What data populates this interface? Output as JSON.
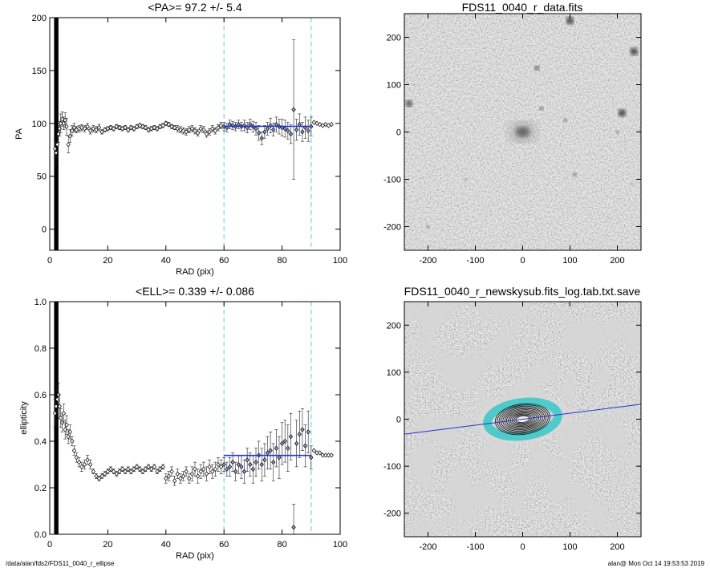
{
  "footer": {
    "left": "/data/alan/fds2/FDS11_0040_r_ellipse",
    "right": "alan@  Mon Oct 14 19:53:53 2019"
  },
  "colors": {
    "fit_line": "#2233cc",
    "bound_line": "#66dddd",
    "ellipse": "#40c8c8"
  },
  "chart_data": [
    {
      "type": "scatter",
      "title": "<PA>=  97.2 +/-   5.4",
      "xlabel": "RAD (pix)",
      "ylabel": "PA",
      "xlim": [
        0,
        100
      ],
      "ylim": [
        -20,
        200
      ],
      "xticks": [
        0,
        20,
        40,
        60,
        80,
        100
      ],
      "yticks": [
        0,
        50,
        100,
        150,
        200
      ],
      "bounds": [
        60,
        90
      ],
      "fit": {
        "x": [
          60,
          90
        ],
        "y": 97.2
      },
      "inner_band": {
        "x": [
          1.5,
          3.0
        ],
        "y": [
          -20,
          200
        ]
      },
      "series": [
        {
          "x": [
            1.8,
            2.2,
            2.6,
            3.0,
            3.4,
            3.8,
            4.3,
            4.8,
            5.3,
            5.8,
            6.4,
            7.0,
            7.7,
            8.4,
            9.2,
            10.1,
            11.0,
            12.0,
            13.0,
            14.0,
            15.0,
            16.0,
            17.0,
            18.0,
            19.0,
            20.0,
            21.0,
            22.0,
            23.0,
            24.0,
            25.0,
            26.0,
            27.0,
            28.0,
            29.0,
            30.0,
            31.0,
            32.0,
            33.0,
            34.0,
            35.0,
            36.0,
            37.0,
            38.0,
            39.0,
            40.0,
            41.0,
            42.0,
            43.0,
            44.0,
            45.0,
            46.0,
            47.0,
            48.0,
            49.0,
            50.0,
            51.0,
            52.0,
            53.0,
            54.0,
            55.0,
            56.0,
            57.0,
            58.0,
            59.0
          ],
          "y": [
            76,
            72,
            80,
            90,
            95,
            100,
            104,
            100,
            103,
            97,
            80,
            88,
            93,
            96,
            94,
            95,
            96,
            95,
            97,
            93,
            95,
            94,
            96,
            92,
            94,
            95,
            96,
            95,
            97,
            96,
            95,
            96,
            94,
            96,
            95,
            97,
            98,
            97,
            96,
            94,
            95,
            96,
            95,
            97,
            98,
            100,
            99,
            97,
            96,
            95,
            94,
            93,
            92,
            94,
            95,
            93,
            91,
            95,
            94,
            90,
            92,
            95,
            93,
            96,
            98
          ],
          "err": [
            8,
            10,
            9,
            8,
            7,
            9,
            7,
            6,
            7,
            8,
            8,
            6,
            5,
            4,
            3,
            3,
            3,
            3,
            3,
            3,
            3,
            3,
            3,
            2,
            2,
            2,
            2,
            2,
            2,
            2,
            2,
            2,
            2,
            2,
            2,
            2,
            2,
            2,
            2,
            2,
            2,
            2,
            2,
            2,
            2,
            2,
            2,
            2,
            2,
            3,
            3,
            3,
            3,
            3,
            3,
            3,
            3,
            3,
            3,
            3,
            3,
            3,
            3,
            3,
            3
          ]
        },
        {
          "x": [
            60,
            61,
            62,
            63,
            64,
            65,
            66,
            67,
            68,
            69,
            70,
            71,
            72,
            73,
            74,
            75,
            76,
            77,
            78,
            79,
            80,
            81,
            82,
            83,
            84,
            85,
            86,
            87,
            88,
            89,
            90
          ],
          "y": [
            97,
            96,
            99,
            98,
            97,
            99,
            97,
            98,
            96,
            99,
            97,
            95,
            91,
            86,
            92,
            95,
            98,
            94,
            99,
            97,
            96,
            95,
            93,
            90,
            113,
            94,
            99,
            92,
            96,
            93,
            97
          ],
          "err": [
            4,
            4,
            4,
            4,
            4,
            4,
            4,
            5,
            5,
            5,
            5,
            6,
            7,
            6,
            6,
            6,
            7,
            6,
            7,
            7,
            8,
            8,
            8,
            9,
            66,
            10,
            10,
            9,
            10,
            10,
            9
          ]
        },
        {
          "x": [
            91,
            92,
            93,
            94,
            95,
            96,
            97
          ],
          "y": [
            101,
            100,
            99,
            98,
            99,
            98,
            99
          ],
          "err": [
            0,
            0,
            0,
            0,
            0,
            0,
            0
          ]
        }
      ]
    },
    {
      "type": "scatter",
      "title": "<ELL>= 0.339 +/-  0.086",
      "xlabel": "RAD (pix)",
      "ylabel": "ellipticity",
      "xlim": [
        0,
        100
      ],
      "ylim": [
        0,
        1
      ],
      "xticks": [
        0,
        20,
        40,
        60,
        80,
        100
      ],
      "yticks": [
        0.0,
        0.2,
        0.4,
        0.6,
        0.8,
        1.0
      ],
      "bounds": [
        60,
        90
      ],
      "fit": {
        "x": [
          60,
          90
        ],
        "y": 0.339
      },
      "inner_band": {
        "x": [
          1.5,
          3.0
        ],
        "y": [
          0,
          1
        ]
      },
      "series": [
        {
          "x": [
            1.8,
            2.2,
            2.6,
            3.0,
            3.4,
            3.8,
            4.3,
            4.8,
            5.3,
            5.8,
            6.4,
            7.0,
            7.7,
            8.4,
            9.2,
            10.1,
            11.0,
            12.0,
            13.0,
            14.0,
            15.0,
            16.0,
            17.0,
            18.0,
            19.0,
            20.0,
            21.0,
            22.0,
            23.0,
            24.0,
            25.0,
            26.0,
            27.0,
            28.0,
            29.0,
            30.0,
            31.0,
            32.0,
            33.0,
            34.0,
            35.0,
            36.0,
            37.0,
            38.0,
            39.0,
            40.0,
            41.0,
            42.0,
            43.0,
            44.0,
            45.0,
            46.0,
            47.0,
            48.0,
            49.0,
            50.0,
            51.0,
            52.0,
            53.0,
            54.0,
            55.0,
            56.0,
            57.0,
            58.0,
            59.0
          ],
          "y": [
            0.52,
            0.55,
            0.58,
            0.6,
            0.55,
            0.5,
            0.48,
            0.52,
            0.45,
            0.47,
            0.42,
            0.44,
            0.4,
            0.36,
            0.33,
            0.31,
            0.29,
            0.3,
            0.32,
            0.3,
            0.27,
            0.25,
            0.24,
            0.25,
            0.26,
            0.27,
            0.28,
            0.27,
            0.26,
            0.27,
            0.28,
            0.27,
            0.28,
            0.27,
            0.28,
            0.29,
            0.28,
            0.27,
            0.28,
            0.29,
            0.28,
            0.29,
            0.27,
            0.28,
            0.29,
            0.24,
            0.25,
            0.27,
            0.23,
            0.26,
            0.24,
            0.25,
            0.27,
            0.24,
            0.26,
            0.28,
            0.25,
            0.27,
            0.28,
            0.26,
            0.29,
            0.27,
            0.28,
            0.3,
            0.29
          ],
          "err": [
            0.06,
            0.07,
            0.06,
            0.05,
            0.05,
            0.04,
            0.04,
            0.04,
            0.04,
            0.04,
            0.03,
            0.03,
            0.02,
            0.02,
            0.02,
            0.02,
            0.02,
            0.02,
            0.02,
            0.02,
            0.01,
            0.01,
            0.01,
            0.01,
            0.01,
            0.01,
            0.01,
            0.01,
            0.01,
            0.01,
            0.01,
            0.01,
            0.01,
            0.01,
            0.01,
            0.01,
            0.01,
            0.01,
            0.01,
            0.01,
            0.01,
            0.01,
            0.01,
            0.01,
            0.01,
            0.02,
            0.02,
            0.02,
            0.02,
            0.02,
            0.02,
            0.02,
            0.02,
            0.02,
            0.03,
            0.03,
            0.03,
            0.03,
            0.03,
            0.03,
            0.03,
            0.03,
            0.03,
            0.03,
            0.03
          ]
        },
        {
          "x": [
            60,
            61,
            62,
            63,
            64,
            65,
            66,
            67,
            68,
            69,
            70,
            71,
            72,
            73,
            74,
            75,
            76,
            77,
            78,
            79,
            80,
            81,
            82,
            83,
            84,
            85,
            86,
            87,
            88,
            89,
            90
          ],
          "y": [
            0.3,
            0.28,
            0.29,
            0.31,
            0.27,
            0.3,
            0.29,
            0.27,
            0.32,
            0.3,
            0.28,
            0.31,
            0.34,
            0.3,
            0.32,
            0.35,
            0.36,
            0.31,
            0.37,
            0.33,
            0.39,
            0.4,
            0.37,
            0.42,
            0.03,
            0.39,
            0.43,
            0.45,
            0.38,
            0.44,
            0.33
          ],
          "err": [
            0.03,
            0.03,
            0.04,
            0.04,
            0.04,
            0.04,
            0.05,
            0.05,
            0.05,
            0.05,
            0.06,
            0.06,
            0.06,
            0.07,
            0.07,
            0.07,
            0.08,
            0.08,
            0.08,
            0.09,
            0.09,
            0.09,
            0.1,
            0.1,
            0.1,
            0.1,
            0.1,
            0.09,
            0.09,
            0.09,
            0.05
          ]
        },
        {
          "x": [
            91,
            92,
            93,
            94,
            95,
            96,
            97
          ],
          "y": [
            0.36,
            0.35,
            0.35,
            0.34,
            0.34,
            0.34,
            0.34
          ],
          "err": [
            0,
            0,
            0,
            0,
            0,
            0,
            0
          ]
        }
      ]
    },
    {
      "type": "heatmap",
      "title": "FDS11_0040_r_data.fits",
      "xlim": [
        -250,
        250
      ],
      "ylim": [
        -250,
        250
      ],
      "xticks": [
        -200,
        -100,
        0,
        100,
        200
      ],
      "yticks": [
        -200,
        -100,
        0,
        100,
        200
      ],
      "colormap": "gray_r",
      "galaxy": {
        "x": 0,
        "y": 0,
        "size": 40
      },
      "sources": [
        {
          "x": 100,
          "y": 235,
          "size": 14
        },
        {
          "x": 235,
          "y": 170,
          "size": 14
        },
        {
          "x": -240,
          "y": 60,
          "size": 12
        },
        {
          "x": 210,
          "y": 40,
          "size": 14
        },
        {
          "x": 30,
          "y": 135,
          "size": 9
        },
        {
          "x": 90,
          "y": 25,
          "size": 7
        },
        {
          "x": 40,
          "y": 50,
          "size": 7
        },
        {
          "x": 110,
          "y": -90,
          "size": 7
        },
        {
          "x": 200,
          "y": 0,
          "size": 6
        },
        {
          "x": -200,
          "y": -200,
          "size": 6
        },
        {
          "x": 230,
          "y": -110,
          "size": 5
        },
        {
          "x": -120,
          "y": -100,
          "size": 5
        },
        {
          "x": 180,
          "y": -180,
          "size": 4
        },
        {
          "x": -30,
          "y": -220,
          "size": 4
        },
        {
          "x": -230,
          "y": 100,
          "size": 4
        }
      ]
    },
    {
      "type": "heatmap",
      "title": "FDS11_0040_r_newskysub.fits_log.tab.txt.save",
      "xlim": [
        -250,
        250
      ],
      "ylim": [
        -250,
        250
      ],
      "xticks": [
        -200,
        -100,
        0,
        100,
        200
      ],
      "yticks": [
        -200,
        -100,
        0,
        100,
        200
      ],
      "colormap": "gray_r",
      "galaxy": {
        "x": 0,
        "y": 0
      },
      "pa_line": {
        "angle_deg": 97.2
      },
      "ellipse_radii": [
        60,
        90
      ],
      "ellipticity": 0.339
    }
  ]
}
